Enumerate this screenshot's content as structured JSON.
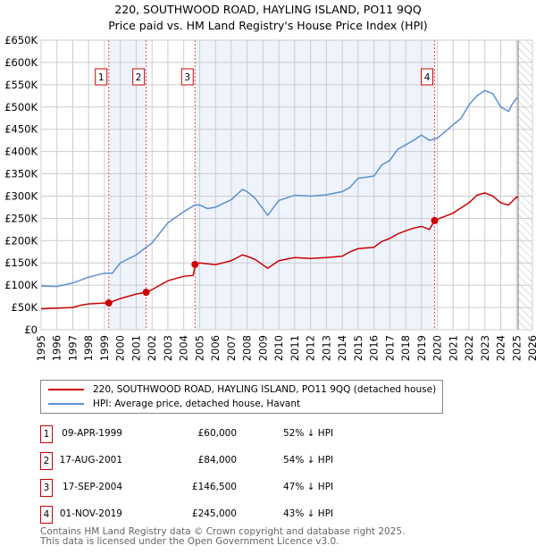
{
  "chart_data": {
    "type": "line",
    "title": "220, SOUTHWOOD ROAD, HAYLING ISLAND, PO11 9QQ",
    "subtitle": "Price paid vs. HM Land Registry's House Price Index (HPI)",
    "xlim": [
      1995,
      2026
    ],
    "ylim": [
      0,
      650000
    ],
    "x_ticks": [
      "1995",
      "1996",
      "1997",
      "1998",
      "1999",
      "2000",
      "2001",
      "2002",
      "2003",
      "2004",
      "2005",
      "2006",
      "2007",
      "2008",
      "2009",
      "2010",
      "2011",
      "2012",
      "2013",
      "2014",
      "2015",
      "2016",
      "2017",
      "2018",
      "2019",
      "2020",
      "2021",
      "2022",
      "2023",
      "2024",
      "2025",
      "2026"
    ],
    "y_ticks": [
      {
        "v": 0,
        "label": "£0"
      },
      {
        "v": 50000,
        "label": "£50K"
      },
      {
        "v": 100000,
        "label": "£100K"
      },
      {
        "v": 150000,
        "label": "£150K"
      },
      {
        "v": 200000,
        "label": "£200K"
      },
      {
        "v": 250000,
        "label": "£250K"
      },
      {
        "v": 300000,
        "label": "£300K"
      },
      {
        "v": 350000,
        "label": "£350K"
      },
      {
        "v": 400000,
        "label": "£400K"
      },
      {
        "v": 450000,
        "label": "£450K"
      },
      {
        "v": 500000,
        "label": "£500K"
      },
      {
        "v": 550000,
        "label": "£550K"
      },
      {
        "v": 600000,
        "label": "£600K"
      },
      {
        "v": 650000,
        "label": "£650K"
      }
    ],
    "grid": true,
    "series": [
      {
        "name": "220, SOUTHWOOD ROAD, HAYLING ISLAND, PO11 9QQ (detached house)",
        "color": "#cc0000",
        "points": [
          [
            1995,
            47000
          ],
          [
            1997,
            50000
          ],
          [
            1997.5,
            55000
          ],
          [
            1998,
            58000
          ],
          [
            1999,
            60000
          ],
          [
            1999.27,
            60000
          ],
          [
            2000,
            70000
          ],
          [
            2001,
            80000
          ],
          [
            2001.63,
            84000
          ],
          [
            2002,
            90000
          ],
          [
            2003,
            110000
          ],
          [
            2004,
            120000
          ],
          [
            2004.6,
            122000
          ],
          [
            2004.72,
            146500
          ],
          [
            2005,
            150000
          ],
          [
            2006,
            146000
          ],
          [
            2007,
            155000
          ],
          [
            2007.7,
            168000
          ],
          [
            2008,
            165000
          ],
          [
            2008.5,
            158000
          ],
          [
            2009.3,
            138000
          ],
          [
            2010,
            155000
          ],
          [
            2011,
            162000
          ],
          [
            2012,
            160000
          ],
          [
            2013,
            162000
          ],
          [
            2014,
            165000
          ],
          [
            2014.5,
            175000
          ],
          [
            2015,
            182000
          ],
          [
            2016,
            185000
          ],
          [
            2016.5,
            198000
          ],
          [
            2017,
            205000
          ],
          [
            2017.5,
            215000
          ],
          [
            2018,
            222000
          ],
          [
            2018.5,
            228000
          ],
          [
            2019,
            232000
          ],
          [
            2019.5,
            225000
          ],
          [
            2019.83,
            245000
          ],
          [
            2020,
            248000
          ],
          [
            2021,
            262000
          ],
          [
            2022,
            285000
          ],
          [
            2022.5,
            302000
          ],
          [
            2023,
            307000
          ],
          [
            2023.5,
            300000
          ],
          [
            2024,
            285000
          ],
          [
            2024.5,
            280000
          ],
          [
            2025,
            298000
          ],
          [
            2025.1,
            296000
          ]
        ]
      },
      {
        "name": "HPI: Average price, detached house, Havant",
        "color": "#5b8fd4",
        "points": [
          [
            1995,
            98000
          ],
          [
            1996,
            97000
          ],
          [
            1997,
            105000
          ],
          [
            1998,
            118000
          ],
          [
            1999,
            127000
          ],
          [
            1999.5,
            127000
          ],
          [
            2000,
            150000
          ],
          [
            2001,
            168000
          ],
          [
            2002,
            195000
          ],
          [
            2003,
            240000
          ],
          [
            2004,
            265000
          ],
          [
            2004.7,
            280000
          ],
          [
            2005,
            280000
          ],
          [
            2005.5,
            272000
          ],
          [
            2006,
            275000
          ],
          [
            2007,
            292000
          ],
          [
            2007.7,
            315000
          ],
          [
            2008,
            310000
          ],
          [
            2008.5,
            295000
          ],
          [
            2009.3,
            257000
          ],
          [
            2010,
            290000
          ],
          [
            2011,
            302000
          ],
          [
            2012,
            300000
          ],
          [
            2013,
            303000
          ],
          [
            2014,
            310000
          ],
          [
            2014.5,
            320000
          ],
          [
            2015,
            340000
          ],
          [
            2016,
            345000
          ],
          [
            2016.5,
            370000
          ],
          [
            2017,
            380000
          ],
          [
            2017.5,
            405000
          ],
          [
            2018,
            415000
          ],
          [
            2018.5,
            425000
          ],
          [
            2019,
            437000
          ],
          [
            2019.5,
            425000
          ],
          [
            2020,
            430000
          ],
          [
            2020.5,
            445000
          ],
          [
            2021,
            460000
          ],
          [
            2021.5,
            475000
          ],
          [
            2022,
            505000
          ],
          [
            2022.5,
            525000
          ],
          [
            2023,
            537000
          ],
          [
            2023.5,
            530000
          ],
          [
            2024,
            500000
          ],
          [
            2024.5,
            490000
          ],
          [
            2024.7,
            505000
          ],
          [
            2025,
            520000
          ],
          [
            2025.1,
            518000
          ]
        ]
      }
    ],
    "sales": [
      {
        "n": "1",
        "x": 1999.27,
        "price": 60000,
        "date": "09-APR-1999",
        "price_label": "£60,000",
        "hpi": "52% ↓ HPI"
      },
      {
        "n": "2",
        "x": 2001.63,
        "price": 84000,
        "date": "17-AUG-2001",
        "price_label": "£84,000",
        "hpi": "54% ↓ HPI"
      },
      {
        "n": "3",
        "x": 2004.71,
        "price": 146500,
        "date": "17-SEP-2004",
        "price_label": "£146,500",
        "hpi": "47% ↓ HPI"
      },
      {
        "n": "4",
        "x": 2019.83,
        "price": 245000,
        "date": "01-NOV-2019",
        "price_label": "£245,000",
        "hpi": "43% ↓ HPI"
      }
    ],
    "shaded_ranges": [
      [
        1999.27,
        2001.63
      ],
      [
        2004.71,
        2019.83
      ]
    ],
    "forecast_from": 2025.1,
    "legend": "below"
  },
  "footer": [
    "Contains HM Land Registry data © Crown copyright and database right 2025.",
    "This data is licensed under the Open Government Licence v3.0."
  ]
}
